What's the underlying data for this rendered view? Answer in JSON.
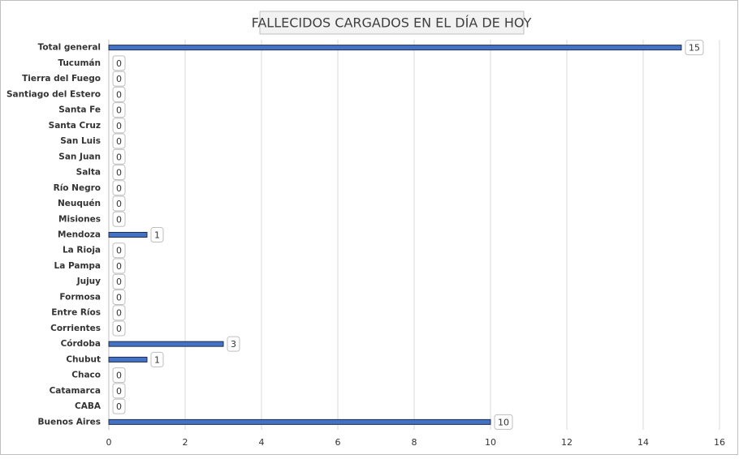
{
  "chart_data": {
    "type": "bar",
    "orientation": "horizontal",
    "title": "FALLECIDOS CARGADOS EN EL DÍA DE HOY",
    "categories": [
      "Total general",
      "Tucumán",
      "Tierra del Fuego",
      "Santiago del Estero",
      "Santa Fe",
      "Santa Cruz",
      "San Luis",
      "San Juan",
      "Salta",
      "Río Negro",
      "Neuquén",
      "Misiones",
      "Mendoza",
      "La Rioja",
      "La Pampa",
      "Jujuy",
      "Formosa",
      "Entre Ríos",
      "Corrientes",
      "Córdoba",
      "Chubut",
      "Chaco",
      "Catamarca",
      "CABA",
      "Buenos Aires"
    ],
    "values": [
      15,
      0,
      0,
      0,
      0,
      0,
      0,
      0,
      0,
      0,
      0,
      0,
      1,
      0,
      0,
      0,
      0,
      0,
      0,
      3,
      1,
      0,
      0,
      0,
      10
    ],
    "color": "#4472c4",
    "xlim": [
      0,
      16
    ],
    "xticks": [
      0,
      2,
      4,
      6,
      8,
      10,
      12,
      14,
      16
    ],
    "grid": true
  }
}
